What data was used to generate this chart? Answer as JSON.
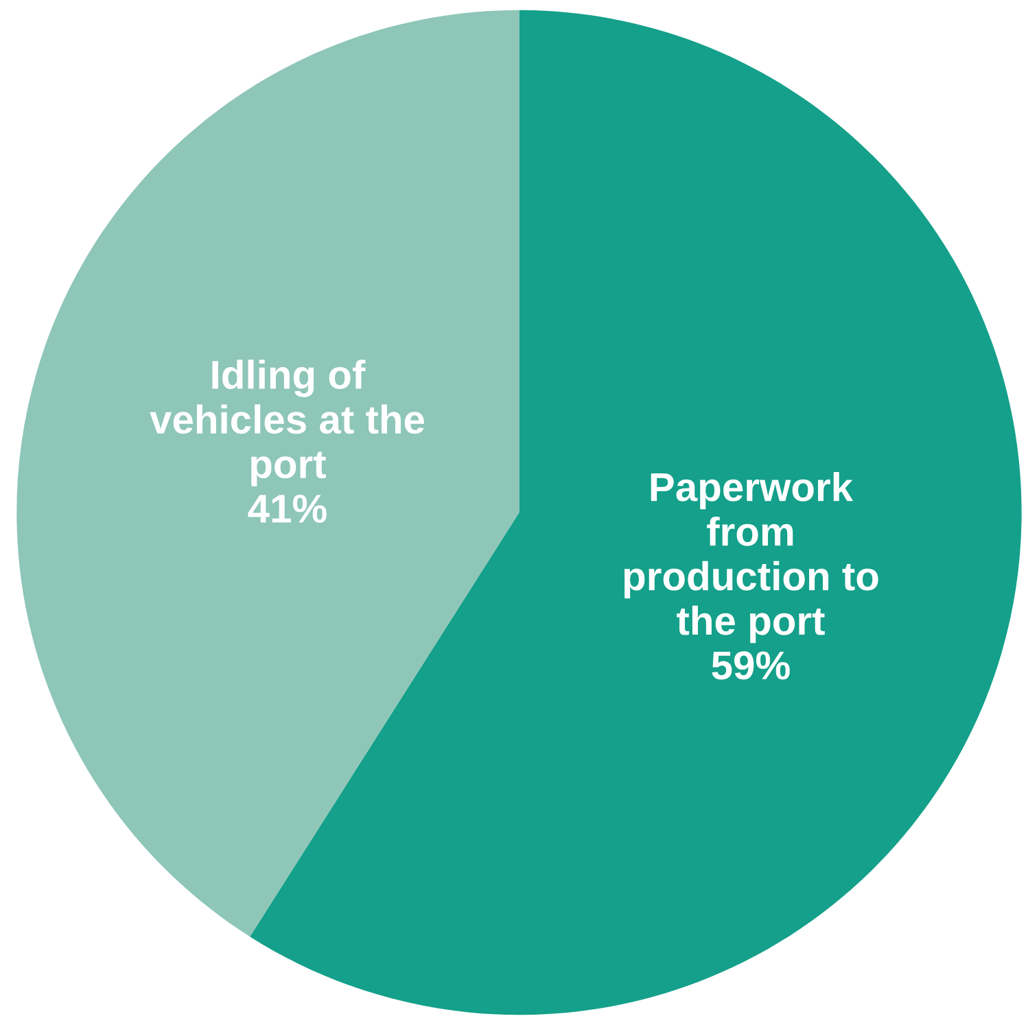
{
  "chart_data": {
    "type": "pie",
    "categories": [
      "Paperwork\nfrom\nproduction to\nthe port",
      "Idling of\nvehicles at the\nport"
    ],
    "values": [
      59,
      41
    ],
    "value_labels": [
      "59%",
      "41%"
    ],
    "colors": [
      "#14a08a",
      "#8ec6b8"
    ]
  }
}
